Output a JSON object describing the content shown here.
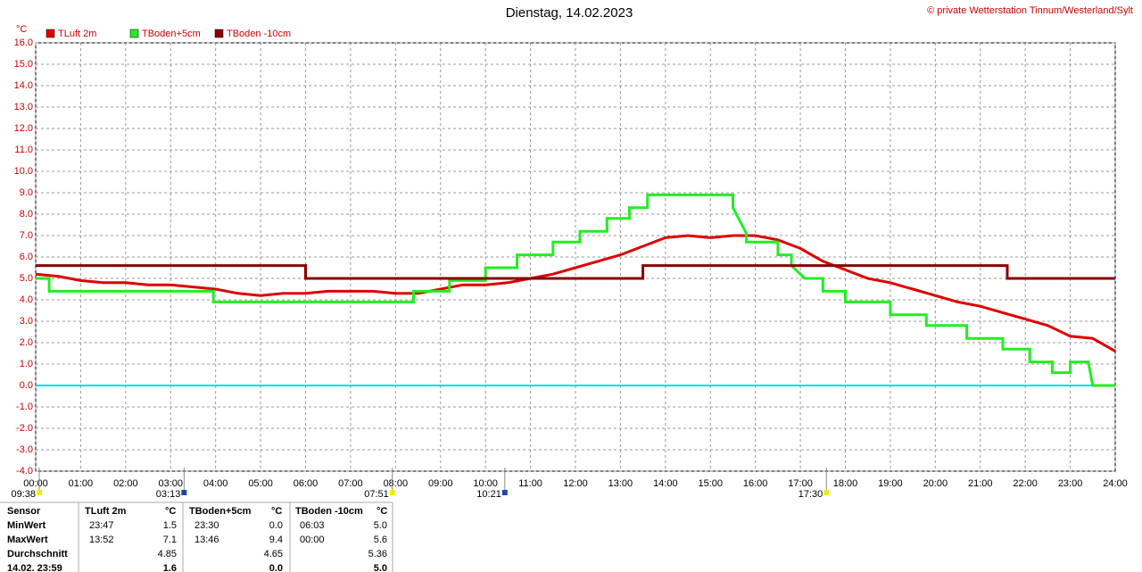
{
  "chart_data": {
    "type": "line",
    "title": "Dienstag, 14.02.2023",
    "credit": "© private Wetterstation Tinnum/Westerland/Sylt",
    "ylabel": "°C",
    "xlim": [
      0,
      24
    ],
    "ylim": [
      -4,
      16
    ],
    "xticks": [
      {
        "value": 0,
        "label": "00:00"
      },
      {
        "value": 1,
        "label": "01:00"
      },
      {
        "value": 2,
        "label": "02:00"
      },
      {
        "value": 3,
        "label": "03:00"
      },
      {
        "value": 4,
        "label": "04:00"
      },
      {
        "value": 5,
        "label": "05:00"
      },
      {
        "value": 6,
        "label": "06:00"
      },
      {
        "value": 7,
        "label": "07:00"
      },
      {
        "value": 8,
        "label": "08:00"
      },
      {
        "value": 9,
        "label": "09:00"
      },
      {
        "value": 10,
        "label": "10:00"
      },
      {
        "value": 11,
        "label": "11:00"
      },
      {
        "value": 12,
        "label": "12:00"
      },
      {
        "value": 13,
        "label": "13:00"
      },
      {
        "value": 14,
        "label": "14:00"
      },
      {
        "value": 15,
        "label": "15:00"
      },
      {
        "value": 16,
        "label": "16:00"
      },
      {
        "value": 17,
        "label": "17:00"
      },
      {
        "value": 18,
        "label": "18:00"
      },
      {
        "value": 19,
        "label": "19:00"
      },
      {
        "value": 20,
        "label": "20:00"
      },
      {
        "value": 21,
        "label": "21:00"
      },
      {
        "value": 22,
        "label": "22:00"
      },
      {
        "value": 23,
        "label": "23:00"
      },
      {
        "value": 24,
        "label": "24:00"
      }
    ],
    "yticks": [
      {
        "value": 16,
        "label": "16.0"
      },
      {
        "value": 15,
        "label": "15.0"
      },
      {
        "value": 14,
        "label": "14.0"
      },
      {
        "value": 13,
        "label": "13.0"
      },
      {
        "value": 12,
        "label": "12.0"
      },
      {
        "value": 11,
        "label": "11.0"
      },
      {
        "value": 10,
        "label": "10.0"
      },
      {
        "value": 9,
        "label": "9.0"
      },
      {
        "value": 8,
        "label": "8.0"
      },
      {
        "value": 7,
        "label": "7.0"
      },
      {
        "value": 6,
        "label": "6.0"
      },
      {
        "value": 5,
        "label": "5.0"
      },
      {
        "value": 4,
        "label": "4.0"
      },
      {
        "value": 3,
        "label": "3.0"
      },
      {
        "value": 2,
        "label": "2.0"
      },
      {
        "value": 1,
        "label": "1.0"
      },
      {
        "value": 0,
        "label": "0.0"
      },
      {
        "value": -1,
        "label": "-1.0"
      },
      {
        "value": -2,
        "label": "-2.0"
      },
      {
        "value": -3,
        "label": "-3.0"
      },
      {
        "value": -4,
        "label": "-4.0"
      }
    ],
    "grid": true,
    "zero_line_color": "#00dddd",
    "series": [
      {
        "name": "TLuft 2m",
        "color": "#dd0000",
        "x": [
          0,
          0.5,
          1,
          1.5,
          2,
          2.5,
          3,
          3.5,
          4,
          4.5,
          5,
          5.5,
          6,
          6.5,
          7,
          7.5,
          8,
          8.5,
          9,
          9.5,
          10,
          10.5,
          11,
          11.5,
          12,
          12.5,
          13,
          13.5,
          14,
          14.5,
          15,
          15.5,
          16,
          16.5,
          17,
          17.5,
          18,
          18.5,
          19,
          19.5,
          20,
          20.5,
          21,
          21.5,
          22,
          22.5,
          23,
          23.5,
          24
        ],
        "values": [
          5.2,
          5.1,
          4.9,
          4.8,
          4.8,
          4.7,
          4.7,
          4.6,
          4.5,
          4.3,
          4.2,
          4.3,
          4.3,
          4.4,
          4.4,
          4.4,
          4.3,
          4.3,
          4.5,
          4.7,
          4.7,
          4.8,
          5.0,
          5.2,
          5.5,
          5.8,
          6.1,
          6.5,
          6.9,
          7.0,
          6.9,
          7.0,
          7.0,
          6.8,
          6.4,
          5.8,
          5.4,
          5.0,
          4.8,
          4.5,
          4.2,
          3.9,
          3.7,
          3.4,
          3.1,
          2.8,
          2.3,
          2.2,
          1.6
        ]
      },
      {
        "name": "TBoden+5cm",
        "color": "#22ee22",
        "x": [
          0,
          0.3,
          0.3,
          3.95,
          3.95,
          8.4,
          8.4,
          9.2,
          9.2,
          10.0,
          10.0,
          10.7,
          10.7,
          11.5,
          11.5,
          12.1,
          12.1,
          12.7,
          12.7,
          13.2,
          13.2,
          13.6,
          13.6,
          15.5,
          15.5,
          15.8,
          15.8,
          16.5,
          16.5,
          16.8,
          16.8,
          17.1,
          17.1,
          17.5,
          17.5,
          18.0,
          18.0,
          19.0,
          19.0,
          19.8,
          19.8,
          20.7,
          20.7,
          21.5,
          21.5,
          22.1,
          22.1,
          22.6,
          22.6,
          23.0,
          23.0,
          23.4,
          23.5,
          24
        ],
        "values": [
          5.0,
          5.0,
          4.4,
          4.4,
          3.9,
          3.9,
          4.4,
          4.4,
          4.9,
          4.9,
          5.5,
          5.5,
          6.1,
          6.1,
          6.7,
          6.7,
          7.2,
          7.2,
          7.8,
          7.8,
          8.3,
          8.3,
          8.9,
          8.9,
          8.3,
          7.1,
          6.7,
          6.7,
          6.1,
          6.1,
          5.6,
          5.0,
          5.0,
          5.0,
          4.4,
          4.4,
          3.9,
          3.9,
          3.3,
          3.3,
          2.8,
          2.8,
          2.2,
          2.2,
          1.7,
          1.7,
          1.1,
          1.1,
          0.6,
          0.6,
          1.1,
          1.1,
          0.0,
          0.0
        ]
      },
      {
        "name": "TBoden -10cm",
        "color": "#880000",
        "x": [
          0,
          6.0,
          6.0,
          13.5,
          13.5,
          21.6,
          21.6,
          24
        ],
        "values": [
          5.6,
          5.6,
          5.0,
          5.0,
          5.6,
          5.6,
          5.0,
          5.0
        ]
      }
    ],
    "annotations": [
      {
        "x": 0,
        "label": "09:38",
        "color": "#eeee00"
      },
      {
        "x": 3.22,
        "label": "03:13",
        "color": "#2244aa"
      },
      {
        "x": 7.85,
        "label": "07:51",
        "color": "#eeee00"
      },
      {
        "x": 10.35,
        "label": "10:21",
        "color": "#2244aa"
      },
      {
        "x": 17.5,
        "label": "17:30",
        "color": "#eeee00"
      }
    ]
  },
  "table": {
    "header": [
      "Sensor",
      "TLuft 2m",
      "°C",
      "TBoden+5cm",
      "°C",
      "TBoden -10cm",
      "°C"
    ],
    "rows": [
      [
        "MinWert",
        "23:47",
        "1.5",
        "23:30",
        "0.0",
        "06:03",
        "5.0"
      ],
      [
        "MaxWert",
        "13:52",
        "7.1",
        "13:46",
        "9.4",
        "00:00",
        "5.6"
      ],
      [
        "Durchschnitt",
        null,
        "4.85",
        null,
        "4.65",
        null,
        "5.36"
      ],
      [
        "14.02. 23:59",
        null,
        "1.6",
        null,
        "0.0",
        null,
        "5.0"
      ]
    ]
  }
}
